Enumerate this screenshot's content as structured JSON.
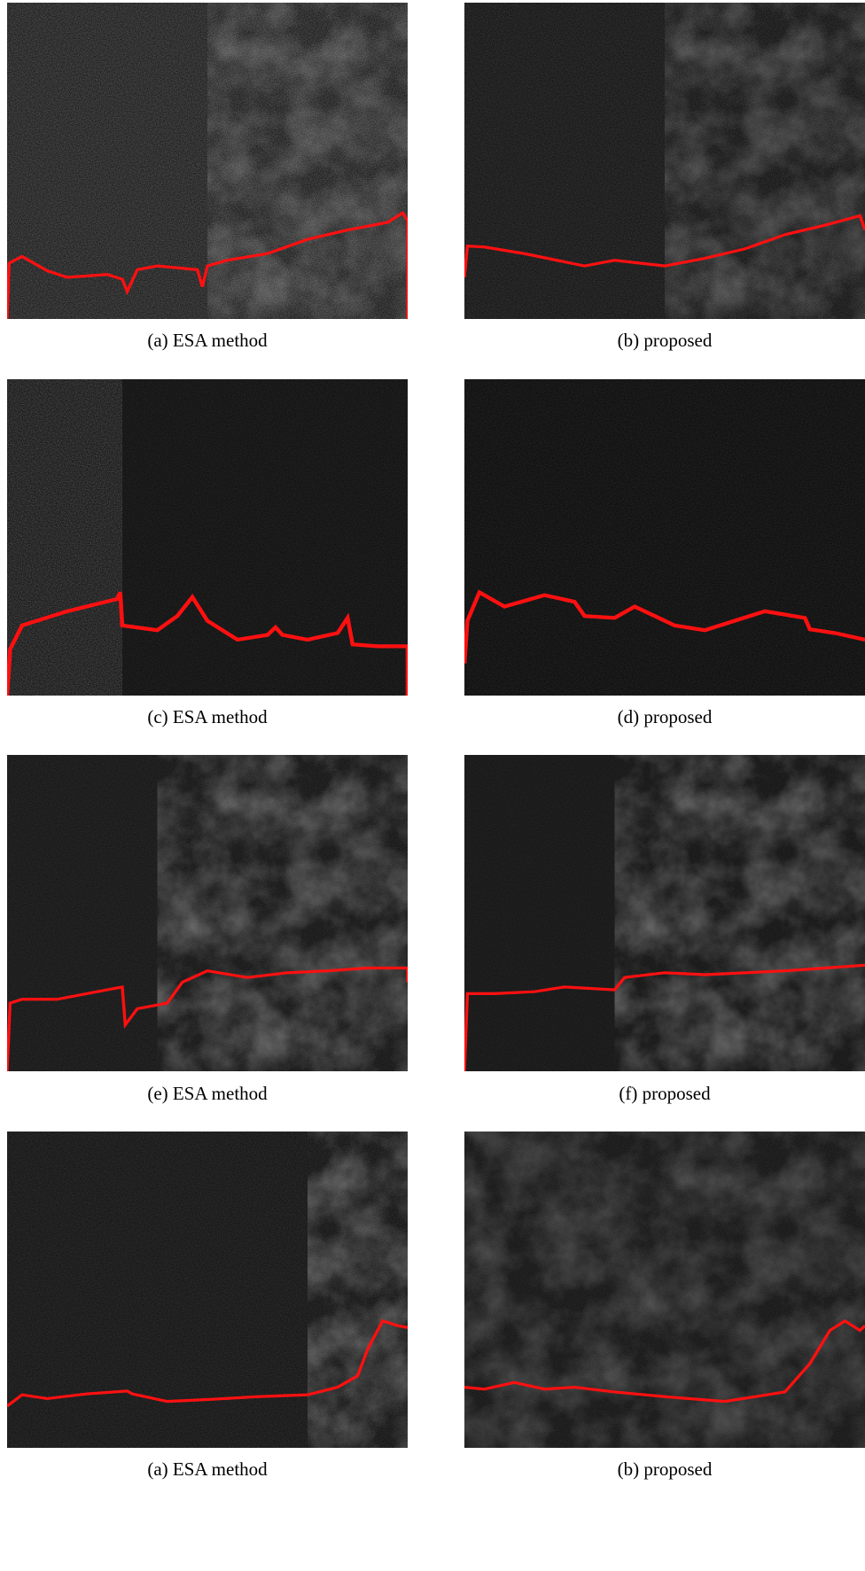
{
  "figure": {
    "panels": [
      {
        "caption": "(a) ESA method"
      },
      {
        "caption": "(b) proposed"
      },
      {
        "caption": "(c) ESA method"
      },
      {
        "caption": "(d) proposed"
      },
      {
        "caption": "(e) ESA method"
      },
      {
        "caption": "(f) proposed"
      },
      {
        "caption": "(a) ESA method"
      },
      {
        "caption": "(b) proposed"
      }
    ]
  }
}
